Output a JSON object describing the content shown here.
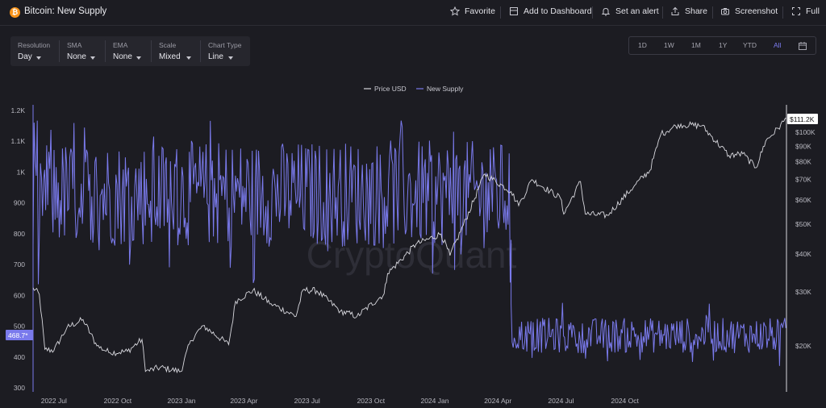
{
  "header": {
    "title": "Bitcoin: New Supply",
    "actions": [
      {
        "label": "Favorite",
        "icon": "star-icon"
      },
      {
        "label": "Add to Dashboard",
        "icon": "dashboard-icon"
      },
      {
        "label": "Set an alert",
        "icon": "bell-icon"
      },
      {
        "label": "Share",
        "icon": "share-icon"
      },
      {
        "label": "Screenshot",
        "icon": "camera-icon"
      },
      {
        "label": "Full",
        "icon": "fullscreen-icon"
      }
    ]
  },
  "controls": [
    {
      "label": "Resolution",
      "value": "Day"
    },
    {
      "label": "SMA",
      "value": "None"
    },
    {
      "label": "EMA",
      "value": "None"
    },
    {
      "label": "Scale",
      "value": "Mixed"
    },
    {
      "label": "Chart Type",
      "value": "Line"
    }
  ],
  "ranges": {
    "options": [
      "1D",
      "1W",
      "1M",
      "1Y",
      "YTD",
      "All"
    ],
    "active": "All",
    "calendar_icon": "calendar-icon"
  },
  "watermark": "CryptoQuant",
  "colors": {
    "price": "#d8d8de",
    "supply": "#7a7aec",
    "background": "#1c1c22"
  },
  "chart_data": {
    "type": "line",
    "legend": [
      "Price USD",
      "New Supply"
    ],
    "legend_position": "top-center",
    "x_ticks": [
      "2022 Jul",
      "2022 Oct",
      "2023 Jan",
      "2023 Apr",
      "2023 Jul",
      "2023 Oct",
      "2024 Jan",
      "2024 Apr",
      "2024 Jul",
      "2024 Oct"
    ],
    "x_range": [
      "2022-06-01",
      "2025-05-22"
    ],
    "y_left": {
      "label": "New Supply",
      "ticks": [
        300,
        400,
        500,
        600,
        700,
        800,
        900,
        1000,
        1100,
        1200
      ],
      "tick_labels": [
        "300",
        "400",
        "500",
        "600",
        "700",
        "800",
        "900",
        "1K",
        "1.1K",
        "1.2K"
      ],
      "range": [
        300,
        1200
      ],
      "scale": "linear"
    },
    "y_right": {
      "label": "Price USD",
      "ticks": [
        20000,
        30000,
        40000,
        50000,
        60000,
        70000,
        80000,
        90000,
        100000
      ],
      "tick_labels": [
        "$20K",
        "$30K",
        "$40K",
        "$50K",
        "$60K",
        "$70K",
        "$80K",
        "$90K",
        "$100K"
      ],
      "scale": "log"
    },
    "last_values": {
      "supply": "468.7*",
      "price": "$111.2K"
    },
    "halving_date": "2024-04-20",
    "series": [
      {
        "name": "Price USD",
        "axis": "right",
        "points": [
          [
            "2022-06-01",
            31000
          ],
          [
            "2022-06-10",
            29500
          ],
          [
            "2022-06-18",
            19500
          ],
          [
            "2022-07-01",
            19300
          ],
          [
            "2022-07-20",
            23000
          ],
          [
            "2022-08-12",
            24400
          ],
          [
            "2022-09-01",
            20000
          ],
          [
            "2022-09-20",
            19000
          ],
          [
            "2022-10-15",
            19200
          ],
          [
            "2022-11-05",
            21000
          ],
          [
            "2022-11-10",
            16500
          ],
          [
            "2022-12-01",
            17000
          ],
          [
            "2022-12-31",
            16500
          ],
          [
            "2023-01-14",
            20800
          ],
          [
            "2023-02-01",
            23300
          ],
          [
            "2023-03-10",
            20200
          ],
          [
            "2023-03-20",
            28000
          ],
          [
            "2023-04-14",
            30400
          ],
          [
            "2023-05-10",
            27500
          ],
          [
            "2023-06-15",
            25000
          ],
          [
            "2023-06-25",
            30500
          ],
          [
            "2023-07-15",
            30300
          ],
          [
            "2023-08-18",
            26000
          ],
          [
            "2023-09-11",
            25000
          ],
          [
            "2023-10-20",
            29600
          ],
          [
            "2023-10-25",
            34500
          ],
          [
            "2023-12-05",
            43000
          ],
          [
            "2024-01-10",
            46500
          ],
          [
            "2024-01-23",
            39500
          ],
          [
            "2024-02-15",
            52000
          ],
          [
            "2024-03-13",
            73000
          ],
          [
            "2024-04-20",
            64000
          ],
          [
            "2024-05-01",
            57500
          ],
          [
            "2024-05-20",
            70000
          ],
          [
            "2024-06-30",
            61000
          ],
          [
            "2024-07-05",
            54000
          ],
          [
            "2024-07-29",
            69000
          ],
          [
            "2024-08-05",
            54000
          ],
          [
            "2024-09-06",
            53500
          ],
          [
            "2024-10-15",
            67000
          ],
          [
            "2024-11-06",
            75000
          ],
          [
            "2024-11-22",
            98500
          ],
          [
            "2024-12-17",
            106000
          ],
          [
            "2025-01-20",
            105000
          ],
          [
            "2025-02-28",
            84000
          ],
          [
            "2025-03-20",
            85000
          ],
          [
            "2025-04-08",
            76500
          ],
          [
            "2025-04-22",
            93500
          ],
          [
            "2025-05-10",
            103000
          ],
          [
            "2025-05-22",
            111200
          ]
        ]
      },
      {
        "name": "New Supply",
        "axis": "left",
        "segments": [
          {
            "from": "2022-06-01",
            "to": "2024-04-19",
            "typical_range": [
              780,
              1080
            ],
            "max": 1170,
            "min": 630
          },
          {
            "from": "2024-04-20",
            "to": "2025-05-22",
            "typical_range": [
              420,
              520
            ],
            "max": 580,
            "min": 370
          }
        ]
      }
    ]
  }
}
